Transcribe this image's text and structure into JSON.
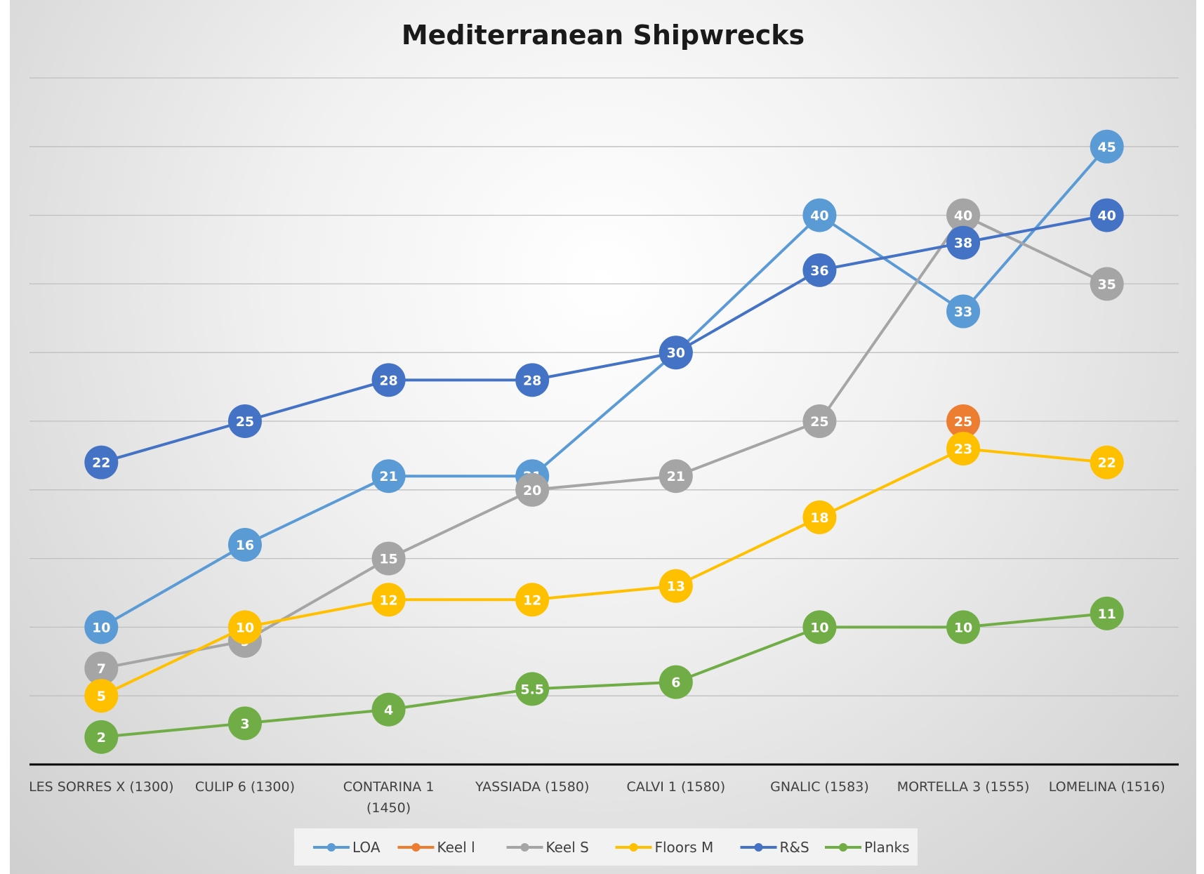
{
  "chart_data": {
    "type": "line",
    "title": "Mediterranean Shipwrecks",
    "xlabel": "",
    "ylabel": "",
    "ylim": [
      0,
      50
    ],
    "grid": true,
    "legend_position": "bottom",
    "categories": [
      [
        "LES SORRES X (1300)"
      ],
      [
        "CULIP 6 (1300)"
      ],
      [
        "CONTARINA 1",
        "(1450)"
      ],
      [
        "YASSIADA (1580)"
      ],
      [
        "CALVI 1 (1580)"
      ],
      [
        "GNALIC (1583)"
      ],
      [
        "MORTELLA 3 (1555)"
      ],
      [
        "LOMELINA (1516)"
      ]
    ],
    "series": [
      {
        "name": "LOA",
        "color": "#5b9bd5",
        "values": [
          10,
          16,
          21,
          21,
          30,
          40,
          33,
          45
        ]
      },
      {
        "name": "Keel l",
        "color": "#ed7d31",
        "values": [
          null,
          null,
          null,
          null,
          null,
          null,
          25,
          null
        ]
      },
      {
        "name": "Keel S",
        "color": "#a5a5a5",
        "values": [
          7,
          9,
          15,
          20,
          21,
          25,
          40,
          35
        ]
      },
      {
        "name": "Floors M",
        "color": "#ffc000",
        "values": [
          5,
          10,
          12,
          12,
          13,
          18,
          23,
          22
        ]
      },
      {
        "name": "R&S",
        "color": "#4472c4",
        "values": [
          22,
          25,
          28,
          28,
          30,
          36,
          38,
          40
        ]
      },
      {
        "name": "Planks",
        "color": "#70ad47",
        "values": [
          2,
          3,
          4,
          5.5,
          6,
          10,
          10,
          11
        ]
      }
    ]
  }
}
